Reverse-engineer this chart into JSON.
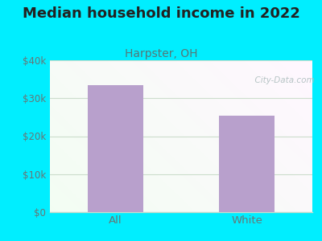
{
  "title": "Median household income in 2022",
  "subtitle": "Harpster, OH",
  "categories": [
    "All",
    "White"
  ],
  "values": [
    33500,
    25500
  ],
  "bar_color": "#b8a0cc",
  "ylim": [
    0,
    40000
  ],
  "yticks": [
    0,
    10000,
    20000,
    30000,
    40000
  ],
  "ytick_labels": [
    "$0",
    "$10k",
    "$20k",
    "$30k",
    "$40k"
  ],
  "background_outer": "#00eeff",
  "title_fontsize": 13,
  "title_color": "#222222",
  "subtitle_fontsize": 10,
  "subtitle_color": "#557777",
  "watermark_text": "  City-Data.com",
  "watermark_color": "#aabbbb",
  "tick_color": "#667777",
  "grid_color": "#ccddcc",
  "plot_bg_top": "#f0f8ee",
  "plot_bg_bottom": "#e8f5ee"
}
